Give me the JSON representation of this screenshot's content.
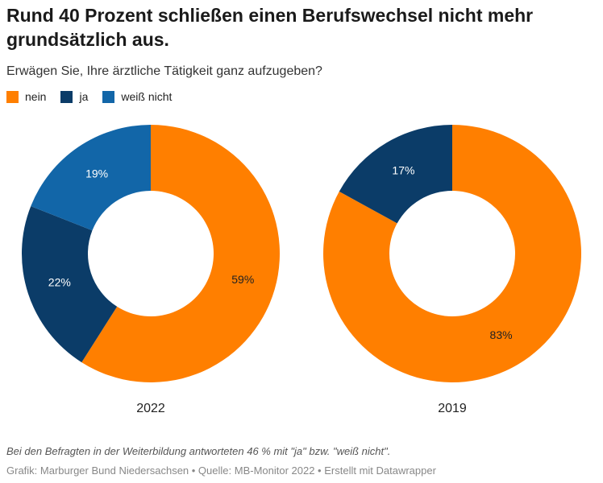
{
  "header": {
    "title": "Rund 40 Prozent schließen einen Berufswechsel nicht mehr grundsätzlich aus.",
    "subtitle": "Erwägen Sie, Ihre ärztliche Tätigkeit ganz aufzugeben?"
  },
  "chart_data": [
    {
      "type": "pie",
      "title": "2022",
      "categories": [
        "nein",
        "ja",
        "weiß nicht"
      ],
      "colors": [
        "#ff7f00",
        "#0b3c68",
        "#1266a8"
      ],
      "values": [
        59,
        22,
        19
      ],
      "value_labels": [
        "59%",
        "22%",
        "19%"
      ]
    },
    {
      "type": "pie",
      "title": "2019",
      "categories": [
        "nein",
        "ja"
      ],
      "colors": [
        "#ff7f00",
        "#0b3c68"
      ],
      "values": [
        83,
        17
      ],
      "value_labels": [
        "83%",
        "17%"
      ]
    }
  ],
  "footer": {
    "note": "Bei den Befragten in der Weiterbildung antworteten 46 % mit \"ja\" bzw. \"weiß nicht\".",
    "credit": "Grafik: Marburger Bund Niedersachsen • Quelle: MB-Monitor 2022 • Erstellt mit Datawrapper"
  }
}
